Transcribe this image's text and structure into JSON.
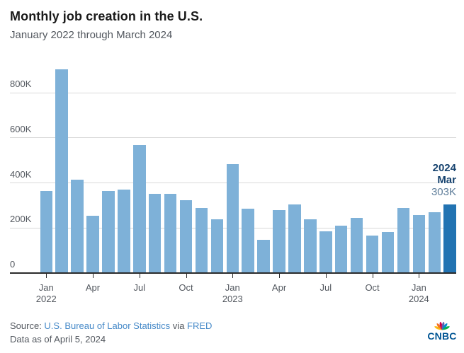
{
  "header": {
    "title": "Monthly job creation in the U.S.",
    "subtitle": "January 2022 through March 2024"
  },
  "chart_data": {
    "type": "bar",
    "title": "Monthly job creation in the U.S.",
    "subtitle": "January 2022 through March 2024",
    "categories": [
      "Jan 2022",
      "Feb 2022",
      "Mar 2022",
      "Apr 2022",
      "May 2022",
      "Jun 2022",
      "Jul 2022",
      "Aug 2022",
      "Sep 2022",
      "Oct 2022",
      "Nov 2022",
      "Dec 2022",
      "Jan 2023",
      "Feb 2023",
      "Mar 2023",
      "Apr 2023",
      "May 2023",
      "Jun 2023",
      "Jul 2023",
      "Aug 2023",
      "Sep 2023",
      "Oct 2023",
      "Nov 2023",
      "Dec 2023",
      "Jan 2024",
      "Feb 2024",
      "Mar 2024"
    ],
    "values_thousands": [
      364,
      904,
      414,
      254,
      364,
      370,
      568,
      352,
      350,
      324,
      290,
      239,
      482,
      287,
      146,
      278,
      303,
      240,
      184,
      210,
      246,
      165,
      182,
      290,
      256,
      270,
      303
    ],
    "unit_suffix": "K",
    "ylim": [
      0,
      950
    ],
    "yticks": [
      0,
      200,
      400,
      600,
      800
    ],
    "ytick_labels": [
      "0",
      "200K",
      "400K",
      "600K",
      "800K"
    ],
    "xticks": [
      {
        "i": 0,
        "month": "Jan",
        "year": "2022"
      },
      {
        "i": 3,
        "month": "Apr"
      },
      {
        "i": 6,
        "month": "Jul"
      },
      {
        "i": 9,
        "month": "Oct"
      },
      {
        "i": 12,
        "month": "Jan",
        "year": "2023"
      },
      {
        "i": 15,
        "month": "Apr"
      },
      {
        "i": 18,
        "month": "Jul"
      },
      {
        "i": 21,
        "month": "Oct"
      },
      {
        "i": 24,
        "month": "Jan",
        "year": "2024"
      }
    ],
    "highlight_index": 26,
    "grid": true,
    "legend": "none",
    "colors": {
      "bar": "#7eb1d8",
      "bar_highlight": "#2273b2",
      "gridline": "#d9d9d9",
      "axis": "#2b2b2b",
      "tick_label": "#53585f"
    }
  },
  "annotation": {
    "year": "2024",
    "month": "Mar",
    "value": "303K"
  },
  "footer": {
    "source_prefix": "Source: ",
    "source_link": "U.S. Bureau of Labor Statistics",
    "via": " via ",
    "fred_link": "FRED",
    "data_as_of": "Data as of April 5, 2024"
  },
  "logo": {
    "wordmark": "CNBC",
    "feather_colors": [
      "#FCB711",
      "#F37021",
      "#CC004C",
      "#6460AA",
      "#0089D0",
      "#0DB14B"
    ]
  }
}
